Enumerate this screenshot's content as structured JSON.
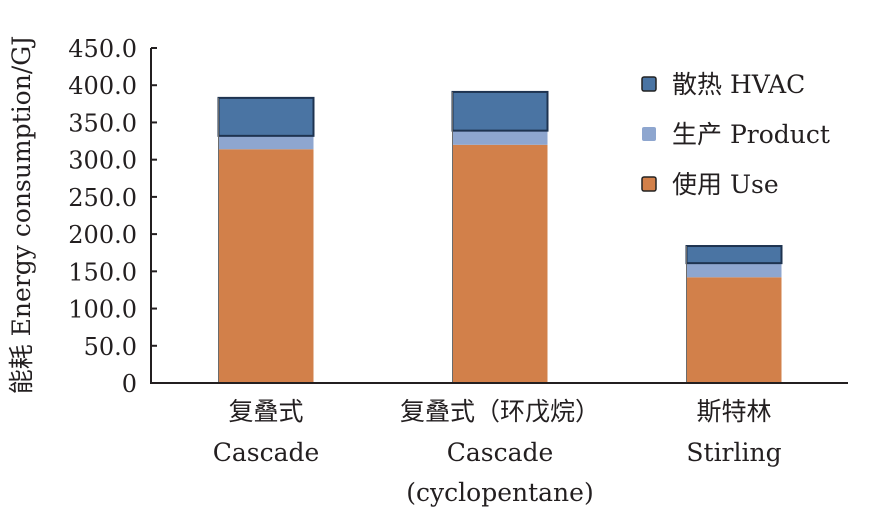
{
  "chart_data": {
    "type": "bar",
    "stacked": true,
    "title": "",
    "xlabel": "",
    "ylabel": "能耗 Energy consumption/GJ",
    "ylim": [
      0,
      450
    ],
    "yticks": [
      0,
      50,
      100,
      150,
      200,
      250,
      300,
      350,
      400,
      450
    ],
    "ytick_labels": [
      "0",
      "50.0",
      "100.0",
      "150.0",
      "200.0",
      "250.0",
      "300.0",
      "350.0",
      "400.0",
      "450.0"
    ],
    "grid": false,
    "legend_position": "top-right",
    "categories": [
      {
        "zh": "复叠式",
        "en": [
          "Cascade"
        ]
      },
      {
        "zh": "复叠式（环戊烷）",
        "en": [
          "Cascade",
          "(cyclopentane)"
        ]
      },
      {
        "zh": "斯特林",
        "en": [
          "Stirling"
        ]
      }
    ],
    "series": [
      {
        "name": "使用 Use",
        "color": "#d2804a",
        "values": [
          314,
          320,
          142
        ]
      },
      {
        "name": "生产 Product",
        "color": "#8ea6cf",
        "values": [
          18,
          19,
          19
        ]
      },
      {
        "name": "散热 HVAC",
        "color": "#4a74a3",
        "values": [
          51,
          52,
          23
        ]
      }
    ],
    "legend_order": [
      "散热 HVAC",
      "生产 Product",
      "使用 Use"
    ]
  }
}
